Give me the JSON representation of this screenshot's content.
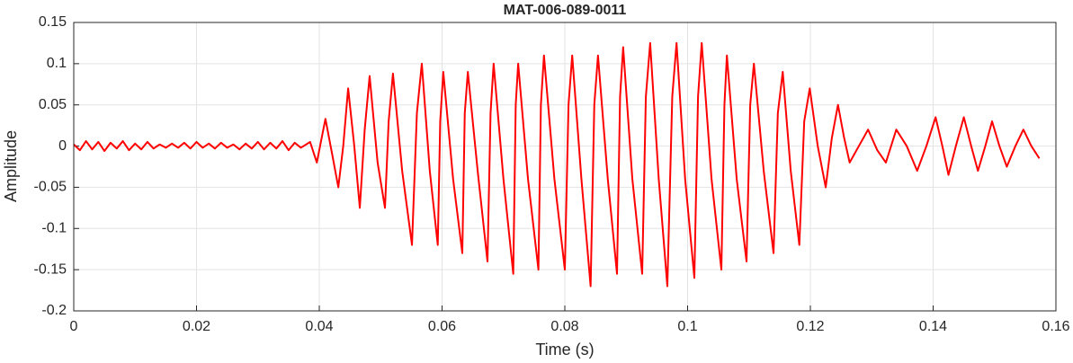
{
  "chart_data": {
    "type": "line",
    "title": "MAT-006-089-0011",
    "x_label": "Time (s)",
    "y_label": "Amplitude",
    "x": [
      0,
      0.001,
      0.002,
      0.003,
      0.004,
      0.005,
      0.006,
      0.007,
      0.008,
      0.009,
      0.01,
      0.011,
      0.012,
      0.013,
      0.014,
      0.015,
      0.016,
      0.017,
      0.018,
      0.019,
      0.02,
      0.021,
      0.022,
      0.023,
      0.024,
      0.025,
      0.026,
      0.027,
      0.028,
      0.029,
      0.03,
      0.031,
      0.032,
      0.033,
      0.034,
      0.035,
      0.036,
      0.037,
      0.0385,
      0.0396,
      0.041,
      0.0421,
      0.0431,
      0.0439,
      0.0447,
      0.0457,
      0.0466,
      0.0474,
      0.0482,
      0.0495,
      0.0507,
      0.0513,
      0.052,
      0.0535,
      0.0551,
      0.0559,
      0.0567,
      0.058,
      0.0593,
      0.0597,
      0.0602,
      0.0618,
      0.0633,
      0.0637,
      0.0642,
      0.0658,
      0.0674,
      0.0679,
      0.0684,
      0.07,
      0.0716,
      0.072,
      0.0724,
      0.074,
      0.0757,
      0.0761,
      0.0766,
      0.0783,
      0.08,
      0.0806,
      0.0812,
      0.0827,
      0.0842,
      0.0848,
      0.0854,
      0.087,
      0.0885,
      0.089,
      0.0895,
      0.091,
      0.0926,
      0.0932,
      0.0939,
      0.0953,
      0.0967,
      0.0975,
      0.0982,
      0.0996,
      0.1011,
      0.1017,
      0.1023,
      0.1039,
      0.1055,
      0.106,
      0.1064,
      0.108,
      0.1096,
      0.1102,
      0.1108,
      0.1124,
      0.114,
      0.1147,
      0.1155,
      0.1168,
      0.1182,
      0.119,
      0.1199,
      0.1212,
      0.1225,
      0.1235,
      0.1245,
      0.1255,
      0.1264,
      0.1279,
      0.1294,
      0.1309,
      0.1323,
      0.134,
      0.1357,
      0.1374,
      0.1389,
      0.1404,
      0.1415,
      0.1425,
      0.1437,
      0.145,
      0.1462,
      0.1473,
      0.1485,
      0.1496,
      0.1508,
      0.152,
      0.1534,
      0.1547,
      0.156,
      0.1573
    ],
    "series": [
      {
        "color": "#ff0000",
        "values": [
          0.002,
          -0.005,
          0.006,
          -0.004,
          0.005,
          -0.006,
          0.004,
          -0.003,
          0.006,
          -0.005,
          0.003,
          -0.004,
          0.005,
          -0.003,
          0.002,
          -0.002,
          0.003,
          -0.002,
          0.004,
          -0.003,
          0.005,
          -0.002,
          0.003,
          -0.003,
          0.004,
          -0.002,
          0.002,
          -0.004,
          0.003,
          -0.003,
          0.005,
          -0.004,
          0.004,
          -0.003,
          0.006,
          -0.005,
          0.004,
          -0.002,
          0.005,
          -0.02,
          0.033,
          -0.01,
          -0.05,
          0.0,
          0.07,
          0.0,
          -0.075,
          0.02,
          0.085,
          -0.02,
          -0.075,
          0.03,
          0.088,
          -0.03,
          -0.12,
          0.04,
          0.1,
          -0.03,
          -0.12,
          0.03,
          0.09,
          -0.04,
          -0.13,
          0.04,
          0.09,
          -0.03,
          -0.14,
          0.04,
          0.1,
          -0.04,
          -0.155,
          0.05,
          0.1,
          -0.04,
          -0.15,
          0.05,
          0.11,
          -0.04,
          -0.15,
          0.05,
          0.11,
          -0.04,
          -0.17,
          0.05,
          0.11,
          -0.04,
          -0.155,
          0.06,
          0.12,
          -0.04,
          -0.155,
          0.06,
          0.125,
          -0.04,
          -0.17,
          0.06,
          0.125,
          -0.04,
          -0.16,
          0.06,
          0.125,
          -0.04,
          -0.15,
          0.05,
          0.11,
          -0.04,
          -0.14,
          0.05,
          0.1,
          -0.03,
          -0.13,
          0.04,
          0.09,
          -0.03,
          -0.12,
          0.03,
          0.07,
          0.0,
          -0.05,
          0.01,
          0.05,
          0.01,
          -0.02,
          0.0,
          0.02,
          -0.005,
          -0.02,
          0.02,
          0.0,
          -0.03,
          0.0,
          0.035,
          0.0,
          -0.035,
          0.0,
          0.035,
          0.0,
          -0.03,
          0.0,
          0.03,
          0.0,
          -0.025,
          0.0,
          0.02,
          0.0,
          -0.015
        ]
      }
    ],
    "xlim": [
      0,
      0.16
    ],
    "ylim": [
      -0.2,
      0.15
    ],
    "xticks": [
      0,
      0.02,
      0.04,
      0.06,
      0.08,
      0.1,
      0.12,
      0.14,
      0.16
    ],
    "yticks": [
      -0.2,
      -0.15,
      -0.1,
      -0.05,
      0,
      0.05,
      0.1,
      0.15
    ],
    "grid": true
  }
}
